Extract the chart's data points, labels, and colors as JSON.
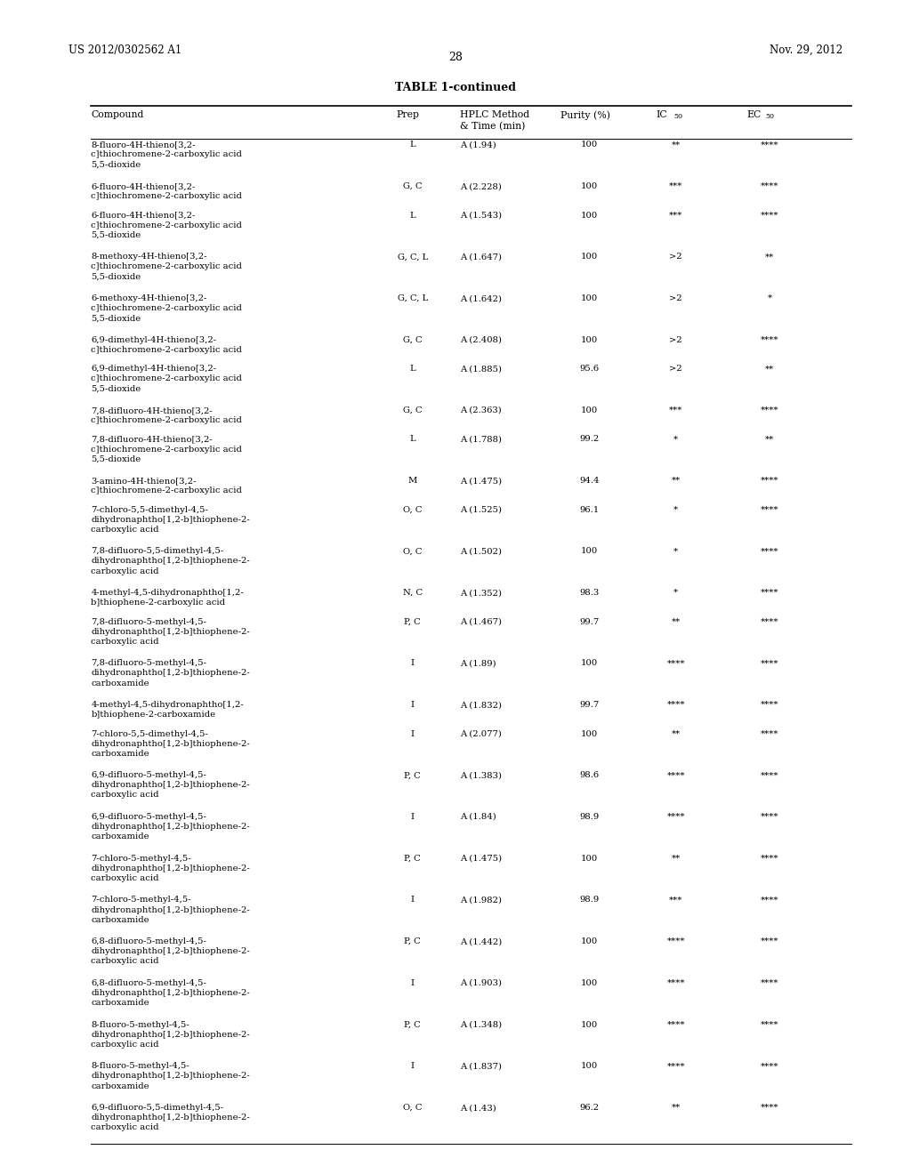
{
  "header_text": "TABLE 1-continued",
  "page_left": "US 2012/0302562 A1",
  "page_right": "Nov. 29, 2012",
  "page_number": "28",
  "rows": [
    [
      "8-fluoro-4H-thieno[3,2-\nc]thiochromene-2-carboxylic acid\n5,5-dioxide",
      "L",
      "A (1.94)",
      "100",
      "**",
      "****"
    ],
    [
      "6-fluoro-4H-thieno[3,2-\nc]thiochromene-2-carboxylic acid",
      "G, C",
      "A (2.228)",
      "100",
      "***",
      "****"
    ],
    [
      "6-fluoro-4H-thieno[3,2-\nc]thiochromene-2-carboxylic acid\n5,5-dioxide",
      "L",
      "A (1.543)",
      "100",
      "***",
      "****"
    ],
    [
      "8-methoxy-4H-thieno[3,2-\nc]thiochromene-2-carboxylic acid\n5,5-dioxide",
      "G, C, L",
      "A (1.647)",
      "100",
      ">2",
      "**"
    ],
    [
      "6-methoxy-4H-thieno[3,2-\nc]thiochromene-2-carboxylic acid\n5,5-dioxide",
      "G, C, L",
      "A (1.642)",
      "100",
      ">2",
      "*"
    ],
    [
      "6,9-dimethyl-4H-thieno[3,2-\nc]thiochromene-2-carboxylic acid",
      "G, C",
      "A (2.408)",
      "100",
      ">2",
      "****"
    ],
    [
      "6,9-dimethyl-4H-thieno[3,2-\nc]thiochromene-2-carboxylic acid\n5,5-dioxide",
      "L",
      "A (1.885)",
      "95.6",
      ">2",
      "**"
    ],
    [
      "7,8-difluoro-4H-thieno[3,2-\nc]thiochromene-2-carboxylic acid",
      "G, C",
      "A (2.363)",
      "100",
      "***",
      "****"
    ],
    [
      "7,8-difluoro-4H-thieno[3,2-\nc]thiochromene-2-carboxylic acid\n5,5-dioxide",
      "L",
      "A (1.788)",
      "99.2",
      "*",
      "**"
    ],
    [
      "3-amino-4H-thieno[3,2-\nc]thiochromene-2-carboxylic acid",
      "M",
      "A (1.475)",
      "94.4",
      "**",
      "****"
    ],
    [
      "7-chloro-5,5-dimethyl-4,5-\ndihydronaphtho[1,2-b]thiophene-2-\ncarboxylic acid",
      "O, C",
      "A (1.525)",
      "96.1",
      "*",
      "****"
    ],
    [
      "7,8-difluoro-5,5-dimethyl-4,5-\ndihydronaphtho[1,2-b]thiophene-2-\ncarboxylic acid",
      "O, C",
      "A (1.502)",
      "100",
      "*",
      "****"
    ],
    [
      "4-methyl-4,5-dihydronaphtho[1,2-\nb]thiophene-2-carboxylic acid",
      "N, C",
      "A (1.352)",
      "98.3",
      "*",
      "****"
    ],
    [
      "7,8-difluoro-5-methyl-4,5-\ndihydronaphtho[1,2-b]thiophene-2-\ncarboxylic acid",
      "P, C",
      "A (1.467)",
      "99.7",
      "**",
      "****"
    ],
    [
      "7,8-difluoro-5-methyl-4,5-\ndihydronaphtho[1,2-b]thiophene-2-\ncarboxamide",
      "I",
      "A (1.89)",
      "100",
      "****",
      "****"
    ],
    [
      "4-methyl-4,5-dihydronaphtho[1,2-\nb]thiophene-2-carboxamide",
      "I",
      "A (1.832)",
      "99.7",
      "****",
      "****"
    ],
    [
      "7-chloro-5,5-dimethyl-4,5-\ndihydronaphtho[1,2-b]thiophene-2-\ncarboxamide",
      "I",
      "A (2.077)",
      "100",
      "**",
      "****"
    ],
    [
      "6,9-difluoro-5-methyl-4,5-\ndihydronaphtho[1,2-b]thiophene-2-\ncarboxylic acid",
      "P, C",
      "A (1.383)",
      "98.6",
      "****",
      "****"
    ],
    [
      "6,9-difluoro-5-methyl-4,5-\ndihydronaphtho[1,2-b]thiophene-2-\ncarboxamide",
      "I",
      "A (1.84)",
      "98.9",
      "****",
      "****"
    ],
    [
      "7-chloro-5-methyl-4,5-\ndihydronaphtho[1,2-b]thiophene-2-\ncarboxylic acid",
      "P, C",
      "A (1.475)",
      "100",
      "**",
      "****"
    ],
    [
      "7-chloro-5-methyl-4,5-\ndihydronaphtho[1,2-b]thiophene-2-\ncarboxamide",
      "I",
      "A (1.982)",
      "98.9",
      "***",
      "****"
    ],
    [
      "6,8-difluoro-5-methyl-4,5-\ndihydronaphtho[1,2-b]thiophene-2-\ncarboxylic acid",
      "P, C",
      "A (1.442)",
      "100",
      "****",
      "****"
    ],
    [
      "6,8-difluoro-5-methyl-4,5-\ndihydronaphtho[1,2-b]thiophene-2-\ncarboxamide",
      "I",
      "A (1.903)",
      "100",
      "****",
      "****"
    ],
    [
      "8-fluoro-5-methyl-4,5-\ndihydronaphtho[1,2-b]thiophene-2-\ncarboxylic acid",
      "P, C",
      "A (1.348)",
      "100",
      "****",
      "****"
    ],
    [
      "8-fluoro-5-methyl-4,5-\ndihydronaphtho[1,2-b]thiophene-2-\ncarboxamide",
      "I",
      "A (1.837)",
      "100",
      "****",
      "****"
    ],
    [
      "6,9-difluoro-5,5-dimethyl-4,5-\ndihydronaphtho[1,2-b]thiophene-2-\ncarboxylic acid",
      "O, C",
      "A (1.43)",
      "96.2",
      "**",
      "****"
    ]
  ],
  "bg_color": "#ffffff",
  "text_color": "#000000",
  "font_size": 7.2,
  "header_font_size": 7.8
}
